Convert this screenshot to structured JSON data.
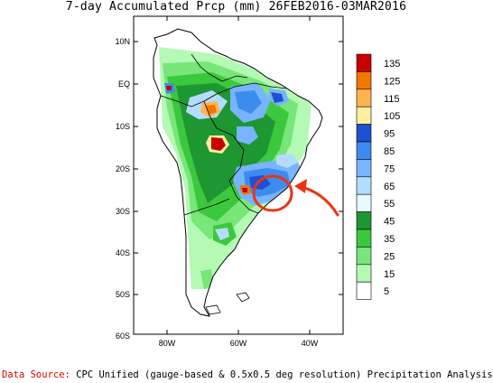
{
  "title": "7-day Accumulated Prcp (mm) 26FEB2016-03MAR2016",
  "map": {
    "lat_labels": [
      "10N",
      "EQ",
      "10S",
      "20S",
      "30S",
      "40S",
      "50S",
      "60S"
    ],
    "lon_labels": [
      "80W",
      "60W",
      "40W"
    ]
  },
  "legend": {
    "levels": [
      {
        "label": "135",
        "color": "#c80000"
      },
      {
        "label": "125",
        "color": "#f07800"
      },
      {
        "label": "115",
        "color": "#ffb450"
      },
      {
        "label": "105",
        "color": "#fff0a0"
      },
      {
        "label": "95",
        "color": "#1e50d2"
      },
      {
        "label": "85",
        "color": "#3c8cf0"
      },
      {
        "label": "75",
        "color": "#78b4ff"
      },
      {
        "label": "65",
        "color": "#b4dcff"
      },
      {
        "label": "55",
        "color": "#e6faff"
      },
      {
        "label": "45",
        "color": "#1e9632"
      },
      {
        "label": "35",
        "color": "#3cc83c"
      },
      {
        "label": "25",
        "color": "#78e678"
      },
      {
        "label": "15",
        "color": "#b4fab4"
      },
      {
        "label": "5",
        "color": "#ffffff"
      }
    ]
  },
  "annotation_color": "#ee3311",
  "footer": {
    "source_label": "Data Source:",
    "text": "CPC Unified (gauge-based & 0.5x0.5 deg resolution) Precipitation Analysis"
  }
}
